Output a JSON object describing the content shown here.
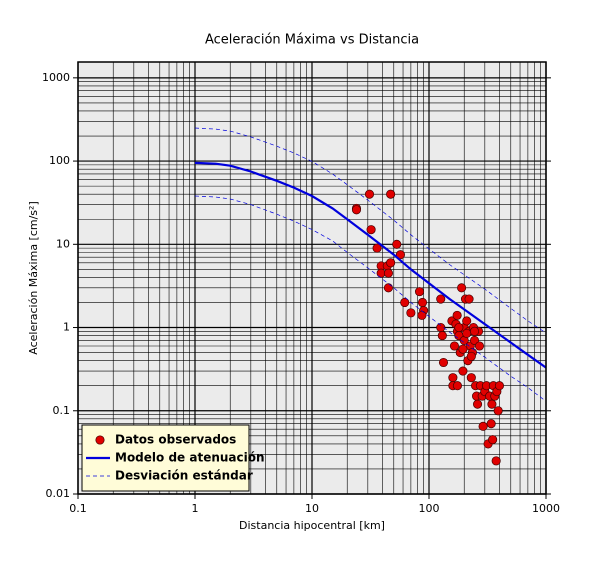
{
  "chart_data": {
    "type": "scatter",
    "title": "Aceleración Máxima vs Distancia",
    "x_label": "Distancia hipocentral [km]",
    "y_label": "Aceleración Máxima [cm/s²]",
    "log_x": true,
    "log_y": true,
    "grid": true,
    "legend": "lower left",
    "xlim": [
      0.1,
      1000
    ],
    "ylim": [
      0.01,
      1550
    ],
    "xticks": [
      0.1,
      1,
      10,
      100,
      1000
    ],
    "yticks": [
      0.01,
      0.1,
      1,
      10,
      100,
      1000
    ],
    "xminorticks": [
      0.2,
      0.3,
      0.4,
      0.5,
      0.6,
      0.7,
      0.8,
      0.9,
      2,
      3,
      4,
      5,
      6,
      7,
      8,
      9,
      20,
      30,
      40,
      50,
      60,
      70,
      80,
      90,
      200,
      300,
      400,
      500,
      600,
      700,
      800,
      900
    ],
    "yminorticks": [
      0.02,
      0.03,
      0.04,
      0.05,
      0.06,
      0.07,
      0.08,
      0.09,
      0.2,
      0.3,
      0.4,
      0.5,
      0.6,
      0.7,
      0.8,
      0.9,
      2,
      3,
      4,
      5,
      6,
      7,
      8,
      9,
      20,
      30,
      40,
      50,
      60,
      70,
      80,
      90,
      200,
      300,
      400,
      500,
      600,
      700,
      800,
      900
    ],
    "series": [
      {
        "name": "Datos observados",
        "type": "scatter",
        "color": "#e00000",
        "x": [
          24,
          24,
          31,
          47,
          32,
          36,
          39,
          39,
          44,
          45,
          47,
          45,
          53,
          57,
          62,
          70,
          83,
          88,
          90,
          87,
          126,
          126,
          130,
          133,
          157,
          160,
          160,
          165,
          170,
          174,
          175,
          180,
          185,
          190,
          195,
          200,
          200,
          205,
          210,
          215,
          220,
          220,
          225,
          230,
          235,
          240,
          245,
          250,
          255,
          260,
          265,
          270,
          275,
          285,
          290,
          300,
          310,
          320,
          330,
          340,
          345,
          350,
          355,
          365,
          375,
          380,
          390,
          400,
          210,
          230,
          195,
          180,
          245,
          175
        ],
        "values": [
          27,
          26,
          40,
          40,
          15,
          9,
          5.5,
          4.5,
          5.5,
          4.5,
          6,
          3,
          10,
          7.5,
          2,
          1.5,
          2.7,
          2,
          1.6,
          1.4,
          2.2,
          1,
          0.8,
          0.38,
          1.2,
          0.25,
          0.2,
          0.6,
          1.1,
          1.4,
          0.9,
          0.8,
          0.5,
          3,
          0.3,
          1,
          0.7,
          2.2,
          1.2,
          0.4,
          2.2,
          0.9,
          0.6,
          0.25,
          0.5,
          1,
          0.7,
          0.2,
          0.15,
          0.12,
          0.9,
          0.6,
          0.2,
          0.15,
          0.065,
          0.17,
          0.2,
          0.04,
          0.15,
          0.07,
          0.12,
          0.045,
          0.2,
          0.15,
          0.025,
          0.17,
          0.1,
          0.2,
          0.85,
          0.45,
          0.55,
          1.0,
          0.9,
          0.2
        ]
      },
      {
        "name": "Modelo de atenuación",
        "type": "line",
        "color": "#0000dd",
        "x": [
          1,
          1.5,
          2,
          3,
          5,
          7,
          10,
          15,
          20,
          30,
          50,
          70,
          100,
          150,
          200,
          300,
          500,
          700,
          1000
        ],
        "values": [
          95,
          93,
          88,
          75,
          58,
          48,
          38,
          27,
          20,
          13,
          7.5,
          5,
          3.4,
          2.2,
          1.65,
          1.1,
          0.66,
          0.47,
          0.33
        ]
      },
      {
        "name": "Desviación estándar",
        "type": "band",
        "color": "#0000dd",
        "dashed": true,
        "x": [
          1,
          1.5,
          2,
          3,
          5,
          7,
          10,
          15,
          20,
          30,
          50,
          70,
          100,
          150,
          200,
          300,
          500,
          700,
          1000
        ],
        "values": [
          250,
          242,
          229,
          195,
          151,
          125,
          99,
          70,
          52,
          34,
          19.5,
          13,
          8.8,
          5.7,
          4.3,
          2.9,
          1.7,
          1.2,
          0.86
        ],
        "lower": [
          38,
          37,
          35,
          30,
          23,
          19,
          15,
          11,
          8,
          5.2,
          3,
          2,
          1.36,
          0.88,
          0.66,
          0.44,
          0.26,
          0.19,
          0.13
        ]
      }
    ]
  }
}
